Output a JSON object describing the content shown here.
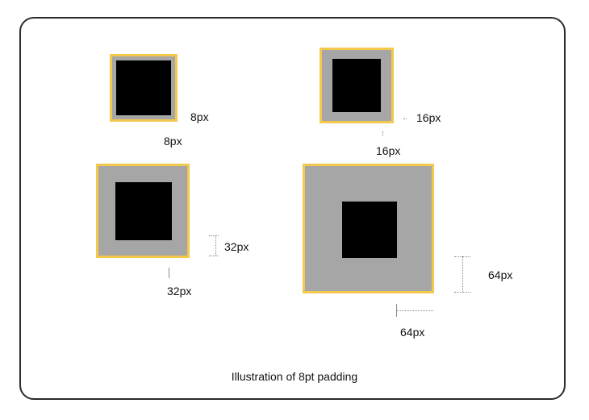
{
  "diagram": {
    "caption": "Illustration of 8pt padding",
    "colors": {
      "padding_fill": "#a6a6a6",
      "border": "#f2c94c",
      "content": "#000000"
    },
    "examples": [
      {
        "padding_right_label": "8px",
        "padding_bottom_label": "8px"
      },
      {
        "padding_right_label": "16px",
        "padding_bottom_label": "16px"
      },
      {
        "padding_right_label": "32px",
        "padding_bottom_label": "32px"
      },
      {
        "padding_right_label": "64px",
        "padding_bottom_label": "64px"
      }
    ]
  }
}
